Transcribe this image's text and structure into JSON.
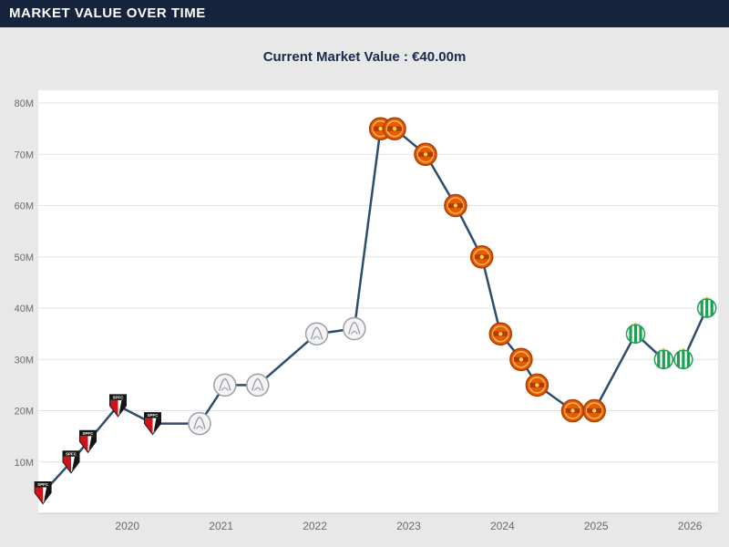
{
  "header": {
    "title": "MARKET VALUE OVER TIME"
  },
  "subtitle": {
    "full": "Current Market Value : €40.00m"
  },
  "colors": {
    "header_bg": "#16233d",
    "header_text": "#ffffff",
    "page_bg": "#e8e8e8",
    "subtitle_text": "#1b2a4a"
  },
  "chart_data": {
    "type": "line",
    "title": "Market value over time",
    "current_value_label": "Current Market Value : €40.00m",
    "x_range": [
      2019.05,
      2026.3
    ],
    "y_range": [
      0,
      82.5
    ],
    "grid": true,
    "plot_bg": "#ffffff",
    "line_color": "#2e4d6d",
    "grid_color": "#e3e3e3",
    "axis_line_color": "#c9c9c9",
    "axis_text_color": "#6b6b6b",
    "x_ticks": [
      {
        "value": 2020,
        "label": "2020"
      },
      {
        "value": 2021,
        "label": "2021"
      },
      {
        "value": 2022,
        "label": "2022"
      },
      {
        "value": 2023,
        "label": "2023"
      },
      {
        "value": 2024,
        "label": "2024"
      },
      {
        "value": 2025,
        "label": "2025"
      },
      {
        "value": 2026,
        "label": "2026"
      }
    ],
    "y_ticks": [
      {
        "value": 10,
        "label": "10M"
      },
      {
        "value": 20,
        "label": "20M"
      },
      {
        "value": 30,
        "label": "30M"
      },
      {
        "value": 40,
        "label": "40M"
      },
      {
        "value": 50,
        "label": "50M"
      },
      {
        "value": 60,
        "label": "60M"
      },
      {
        "value": 70,
        "label": "70M"
      },
      {
        "value": 80,
        "label": "80M"
      }
    ],
    "clubs": {
      "spfc": {
        "name": "Sao Paulo FC",
        "abbr": "SPFC",
        "primary": "#d01317",
        "secondary": "#141414"
      },
      "ajax": {
        "name": "Ajax",
        "abbr": "",
        "primary": "#f4f4f4",
        "secondary": "#9aa0a8"
      },
      "manutd": {
        "name": "Manchester United",
        "abbr": "",
        "primary": "#e65c00",
        "secondary": "#b03a00"
      },
      "betis": {
        "name": "Real Betis",
        "abbr": "",
        "primary": "#1d9e53",
        "secondary": "#f2c14e"
      }
    },
    "points": [
      {
        "year": 2019.1,
        "value_m": 4,
        "club": "spfc"
      },
      {
        "year": 2019.4,
        "value_m": 10,
        "club": "spfc"
      },
      {
        "year": 2019.58,
        "value_m": 14,
        "club": "spfc"
      },
      {
        "year": 2019.9,
        "value_m": 21,
        "club": "spfc"
      },
      {
        "year": 2020.27,
        "value_m": 17.5,
        "club": "spfc"
      },
      {
        "year": 2020.77,
        "value_m": 17.5,
        "club": "ajax"
      },
      {
        "year": 2021.04,
        "value_m": 25,
        "club": "ajax"
      },
      {
        "year": 2021.39,
        "value_m": 25,
        "club": "ajax"
      },
      {
        "year": 2022.02,
        "value_m": 35,
        "club": "ajax"
      },
      {
        "year": 2022.42,
        "value_m": 36,
        "club": "ajax"
      },
      {
        "year": 2022.7,
        "value_m": 75,
        "club": "manutd"
      },
      {
        "year": 2022.85,
        "value_m": 75,
        "club": "manutd"
      },
      {
        "year": 2023.18,
        "value_m": 70,
        "club": "manutd"
      },
      {
        "year": 2023.5,
        "value_m": 60,
        "club": "manutd"
      },
      {
        "year": 2023.78,
        "value_m": 50,
        "club": "manutd"
      },
      {
        "year": 2023.98,
        "value_m": 35,
        "club": "manutd"
      },
      {
        "year": 2024.2,
        "value_m": 30,
        "club": "manutd"
      },
      {
        "year": 2024.37,
        "value_m": 25,
        "club": "manutd"
      },
      {
        "year": 2024.75,
        "value_m": 20,
        "club": "manutd"
      },
      {
        "year": 2024.98,
        "value_m": 20,
        "club": "manutd"
      },
      {
        "year": 2025.42,
        "value_m": 35,
        "club": "betis"
      },
      {
        "year": 2025.72,
        "value_m": 30,
        "club": "betis"
      },
      {
        "year": 2025.93,
        "value_m": 30,
        "club": "betis"
      },
      {
        "year": 2026.18,
        "value_m": 40,
        "club": "betis"
      }
    ]
  }
}
